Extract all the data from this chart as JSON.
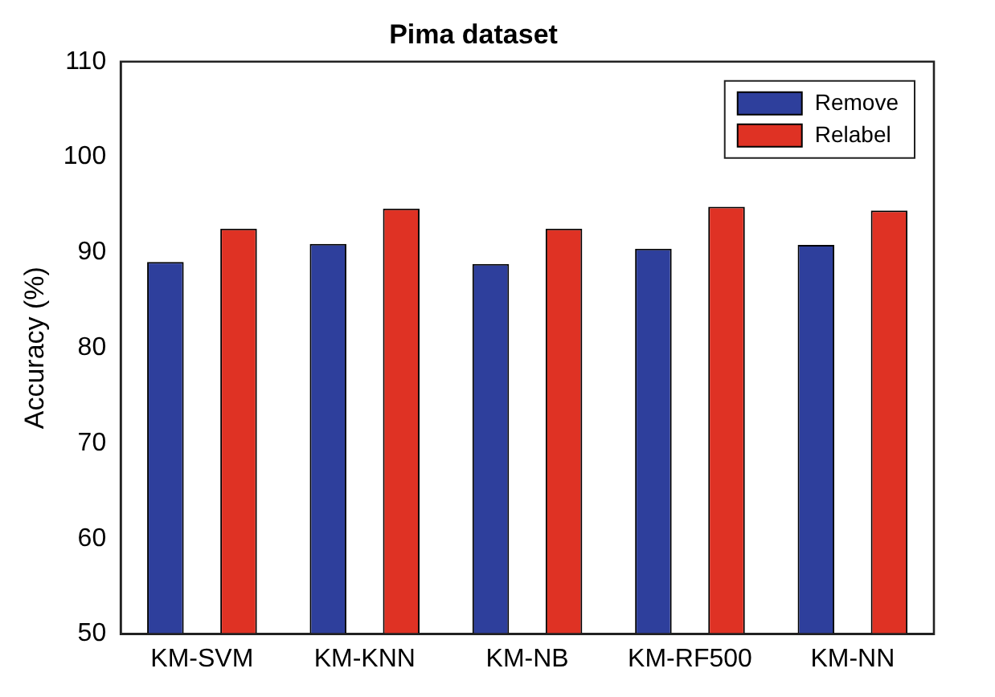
{
  "chart_data": {
    "type": "bar",
    "title": "Pima dataset",
    "ylabel": "Accuracy (%)",
    "categories": [
      "KM-SVM",
      "KM-KNN",
      "KM-NB",
      "KM-RF500",
      "KM-NN"
    ],
    "series": [
      {
        "name": "Remove",
        "color": "#2e3f9c",
        "values": [
          89.0,
          90.9,
          88.8,
          90.4,
          90.8
        ]
      },
      {
        "name": "Relabel",
        "color": "#df3224",
        "values": [
          92.5,
          94.6,
          92.5,
          94.8,
          94.4
        ]
      }
    ],
    "ylim": [
      50,
      110
    ],
    "yticks": [
      50,
      60,
      70,
      80,
      90,
      100,
      110
    ],
    "grid": false,
    "legend": "top right"
  }
}
